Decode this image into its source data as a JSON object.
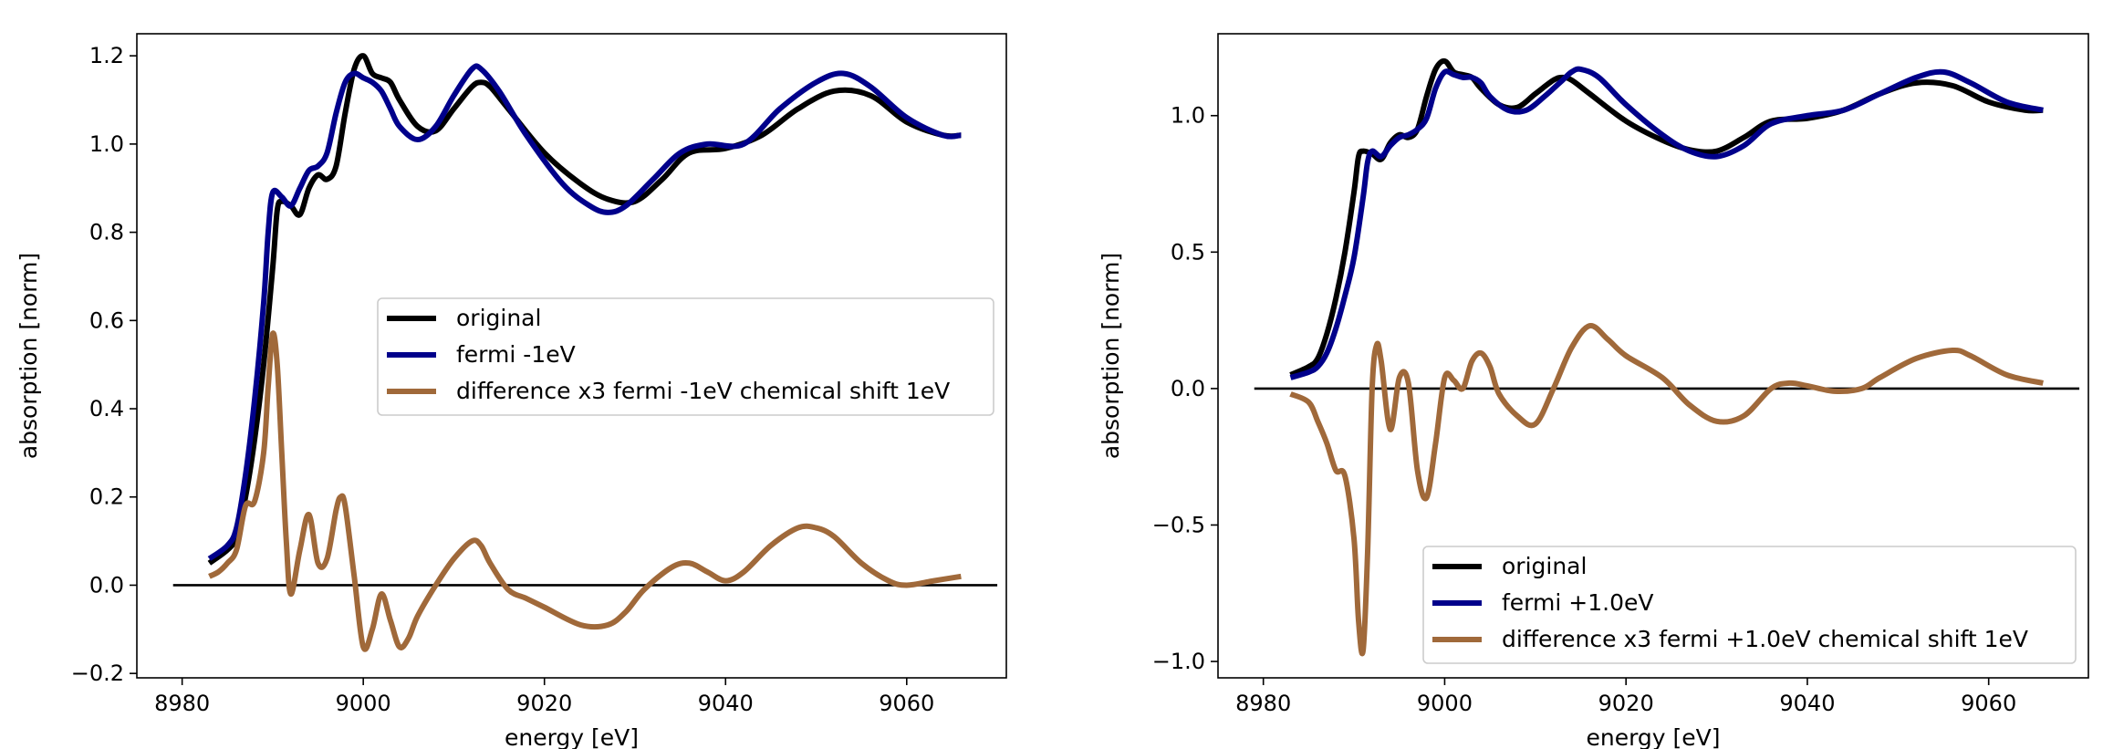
{
  "chart_data": [
    {
      "type": "line",
      "xlabel": "energy [eV]",
      "ylabel": "absorption [norm]",
      "xlim": [
        8975,
        9071
      ],
      "ylim": [
        -0.21,
        1.25
      ],
      "xticks": [
        8980,
        9000,
        9020,
        9040,
        9060
      ],
      "xtick_labels": [
        "8980",
        "9000",
        "9020",
        "9040",
        "9060"
      ],
      "yticks": [
        -0.2,
        0.0,
        0.2,
        0.4,
        0.6,
        0.8,
        1.0,
        1.2
      ],
      "ytick_labels": [
        "−0.2",
        "0.0",
        "0.2",
        "0.4",
        "0.6",
        "0.8",
        "1.0",
        "1.2"
      ],
      "grid": false,
      "legend_position": "center-right",
      "zero_line": {
        "y": 0.0,
        "x_range": [
          8979,
          9070
        ],
        "color": "#000000"
      },
      "series": [
        {
          "name": "original",
          "color": "#000000",
          "x": [
            8983,
            8985,
            8986,
            8987,
            8988,
            8989,
            8990,
            8990.5,
            8991,
            8992,
            8993,
            8994,
            8995,
            8996,
            8997,
            8998,
            8999,
            9000,
            9001,
            9002,
            9003,
            9004,
            9006,
            9008,
            9010,
            9012,
            9013,
            9014,
            9016,
            9020,
            9024,
            9027,
            9030,
            9033,
            9036,
            9040,
            9044,
            9048,
            9052,
            9056,
            9060,
            9064,
            9066
          ],
          "y": [
            0.05,
            0.08,
            0.11,
            0.2,
            0.33,
            0.5,
            0.72,
            0.85,
            0.87,
            0.86,
            0.84,
            0.9,
            0.93,
            0.92,
            0.95,
            1.07,
            1.17,
            1.2,
            1.16,
            1.15,
            1.14,
            1.1,
            1.04,
            1.03,
            1.08,
            1.13,
            1.14,
            1.13,
            1.08,
            0.98,
            0.91,
            0.875,
            0.87,
            0.92,
            0.98,
            0.99,
            1.02,
            1.08,
            1.12,
            1.11,
            1.05,
            1.02,
            1.02
          ]
        },
        {
          "name": "fermi -1eV",
          "color": "#00008b",
          "x": [
            8983,
            8985,
            8986,
            8987,
            8988,
            8989,
            8989.5,
            8990,
            8991,
            8992,
            8993,
            8994,
            8995,
            8996,
            8997,
            8998,
            8999,
            9000,
            9001,
            9002,
            9003,
            9004,
            9006,
            9008,
            9010,
            9012,
            9013,
            9015,
            9018,
            9022,
            9025,
            9027,
            9029,
            9032,
            9035,
            9038,
            9042,
            9046,
            9050,
            9053,
            9056,
            9060,
            9064,
            9066
          ],
          "y": [
            0.06,
            0.09,
            0.13,
            0.25,
            0.42,
            0.64,
            0.8,
            0.89,
            0.88,
            0.86,
            0.9,
            0.94,
            0.95,
            0.98,
            1.07,
            1.14,
            1.16,
            1.15,
            1.14,
            1.12,
            1.08,
            1.04,
            1.01,
            1.04,
            1.11,
            1.17,
            1.17,
            1.12,
            1.02,
            0.91,
            0.86,
            0.845,
            0.86,
            0.92,
            0.98,
            1.0,
            1.0,
            1.08,
            1.14,
            1.16,
            1.13,
            1.06,
            1.02,
            1.02
          ]
        },
        {
          "name": "difference x3 fermi -1eV chemical shift 1eV",
          "color": "#a0693a",
          "x": [
            8983,
            8984,
            8985,
            8986,
            8987,
            8988,
            8989,
            8989.5,
            8990,
            8990.5,
            8991,
            8991.5,
            8992,
            8993,
            8994,
            8995,
            8996,
            8997,
            8997.5,
            8998,
            8999,
            9000,
            9001,
            9002,
            9003,
            9004,
            9005,
            9006,
            9008,
            9010,
            9012,
            9013,
            9014,
            9016,
            9018,
            9020,
            9024,
            9027,
            9029,
            9031,
            9034,
            9036,
            9038,
            9040,
            9042,
            9045,
            9048,
            9050,
            9052,
            9055,
            9058,
            9060,
            9063,
            9066
          ],
          "y": [
            0.02,
            0.03,
            0.05,
            0.08,
            0.18,
            0.19,
            0.3,
            0.45,
            0.57,
            0.5,
            0.3,
            0.1,
            -0.02,
            0.08,
            0.16,
            0.05,
            0.06,
            0.17,
            0.2,
            0.18,
            0.02,
            -0.14,
            -0.1,
            -0.02,
            -0.08,
            -0.14,
            -0.12,
            -0.07,
            0.0,
            0.06,
            0.1,
            0.09,
            0.05,
            -0.01,
            -0.03,
            -0.05,
            -0.09,
            -0.09,
            -0.06,
            -0.01,
            0.04,
            0.05,
            0.03,
            0.01,
            0.03,
            0.09,
            0.13,
            0.13,
            0.11,
            0.05,
            0.01,
            0.0,
            0.01,
            0.02
          ]
        }
      ]
    },
    {
      "type": "line",
      "xlabel": "energy [eV]",
      "ylabel": "absorption [norm]",
      "xlim": [
        8975,
        9071
      ],
      "ylim": [
        -1.06,
        1.3
      ],
      "xticks": [
        8980,
        9000,
        9020,
        9040,
        9060
      ],
      "xtick_labels": [
        "8980",
        "9000",
        "9020",
        "9040",
        "9060"
      ],
      "yticks": [
        -1.0,
        -0.5,
        0.0,
        0.5,
        1.0
      ],
      "ytick_labels": [
        "−1.0",
        "−0.5",
        "0.0",
        "0.5",
        "1.0"
      ],
      "grid": false,
      "legend_position": "lower-right",
      "zero_line": {
        "y": 0.0,
        "x_range": [
          8979,
          9070
        ],
        "color": "#000000"
      },
      "series": [
        {
          "name": "original",
          "color": "#000000",
          "x": [
            8983,
            8985,
            8986,
            8987,
            8988,
            8989,
            8990,
            8990.5,
            8991,
            8992,
            8993,
            8994,
            8995,
            8996,
            8997,
            8998,
            8999,
            9000,
            9001,
            9002,
            9003,
            9004,
            9006,
            9008,
            9010,
            9012,
            9013,
            9014,
            9016,
            9020,
            9024,
            9027,
            9030,
            9033,
            9036,
            9040,
            9044,
            9048,
            9052,
            9056,
            9060,
            9064,
            9066
          ],
          "y": [
            0.05,
            0.08,
            0.11,
            0.2,
            0.33,
            0.5,
            0.72,
            0.85,
            0.87,
            0.86,
            0.84,
            0.9,
            0.93,
            0.92,
            0.95,
            1.07,
            1.17,
            1.2,
            1.16,
            1.15,
            1.14,
            1.1,
            1.04,
            1.03,
            1.08,
            1.13,
            1.14,
            1.13,
            1.08,
            0.98,
            0.91,
            0.875,
            0.87,
            0.92,
            0.98,
            0.99,
            1.02,
            1.08,
            1.12,
            1.11,
            1.05,
            1.02,
            1.02
          ]
        },
        {
          "name": "fermi +1.0eV",
          "color": "#00008b",
          "x": [
            8983,
            8985,
            8986,
            8987,
            8988,
            8989,
            8990,
            8991,
            8991.5,
            8992,
            8993,
            8994,
            8995,
            8996,
            8997,
            8998,
            8999,
            9000,
            9001,
            9002,
            9003,
            9004,
            9005,
            9007,
            9009,
            9011,
            9013,
            9014,
            9015,
            9017,
            9020,
            9024,
            9027,
            9030,
            9033,
            9036,
            9040,
            9044,
            9048,
            9052,
            9055,
            9058,
            9062,
            9066
          ],
          "y": [
            0.04,
            0.06,
            0.08,
            0.13,
            0.22,
            0.34,
            0.48,
            0.7,
            0.83,
            0.87,
            0.85,
            0.89,
            0.92,
            0.93,
            0.95,
            0.99,
            1.1,
            1.16,
            1.15,
            1.14,
            1.14,
            1.12,
            1.07,
            1.02,
            1.02,
            1.07,
            1.13,
            1.16,
            1.17,
            1.14,
            1.04,
            0.93,
            0.87,
            0.85,
            0.89,
            0.97,
            1.0,
            1.02,
            1.08,
            1.14,
            1.16,
            1.12,
            1.05,
            1.02
          ]
        },
        {
          "name": "difference x3 fermi +1.0eV chemical shift 1eV",
          "color": "#a0693a",
          "x": [
            8983,
            8985,
            8986,
            8987,
            8988,
            8989,
            8990,
            8990.5,
            8991,
            8991.5,
            8992,
            8992.5,
            8993,
            8994,
            8995,
            8996,
            8997,
            8998,
            8999,
            9000,
            9001,
            9002,
            9003,
            9004,
            9005,
            9006,
            9008,
            9010,
            9012,
            9014,
            9016,
            9018,
            9020,
            9024,
            9027,
            9030,
            9033,
            9036,
            9038,
            9040,
            9043,
            9046,
            9048,
            9052,
            9056,
            9058,
            9062,
            9066
          ],
          "y": [
            -0.02,
            -0.05,
            -0.12,
            -0.2,
            -0.3,
            -0.32,
            -0.55,
            -0.85,
            -0.96,
            -0.6,
            0.0,
            0.16,
            0.1,
            -0.15,
            0.04,
            0.02,
            -0.3,
            -0.4,
            -0.2,
            0.04,
            0.03,
            0.0,
            0.1,
            0.13,
            0.08,
            -0.02,
            -0.1,
            -0.13,
            0.0,
            0.15,
            0.23,
            0.18,
            0.12,
            0.04,
            -0.06,
            -0.12,
            -0.1,
            0.0,
            0.02,
            0.01,
            -0.01,
            0.0,
            0.04,
            0.11,
            0.14,
            0.12,
            0.05,
            0.02
          ]
        }
      ]
    }
  ]
}
